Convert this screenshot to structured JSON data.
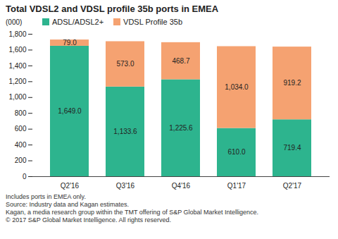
{
  "chart_data": {
    "type": "bar",
    "stacked": true,
    "title": "Total VDSL2 and VDSL profile 35b ports in EMEA",
    "y_label": "(000)",
    "categories": [
      "Q2'16",
      "Q3'16",
      "Q4'16",
      "Q1'17",
      "Q2'17"
    ],
    "series": [
      {
        "name": "ADSL/ADSL2+",
        "color": "#2db48e",
        "values": [
          1649.0,
          1133.6,
          1225.6,
          610.0,
          719.4
        ],
        "value_labels": [
          "1,649.0",
          "1,133.6",
          "1,225.6",
          "610.0",
          "719.4"
        ]
      },
      {
        "name": "VDSL Profile 35b",
        "color": "#f5a271",
        "values": [
          79.0,
          573.0,
          468.7,
          1034.0,
          919.2
        ],
        "value_labels": [
          "79.0",
          "573.0",
          "468.7",
          "1,034.0",
          "919.2"
        ]
      }
    ],
    "ylim": [
      0,
      1800
    ],
    "yticks": [
      0,
      200,
      400,
      600,
      800,
      {
        "value": 1000,
        "label": "1,000"
      },
      {
        "value": 1200,
        "label": "1,200"
      },
      {
        "value": 1400,
        "label": "1,400"
      },
      {
        "value": 1600,
        "label": "1,600"
      },
      {
        "value": 1800,
        "label": "1,800"
      }
    ],
    "grid": false,
    "legend": "top",
    "data_labels": true,
    "notes": [
      "Includes ports in EMEA only.",
      "Source: Industry data and Kagan estimates.",
      "Kagan, a media research group within the TMT offering of S&P Global Market Intelligence.",
      "© 2017 S&P Global Market Intelligence. All rights reserved."
    ]
  }
}
